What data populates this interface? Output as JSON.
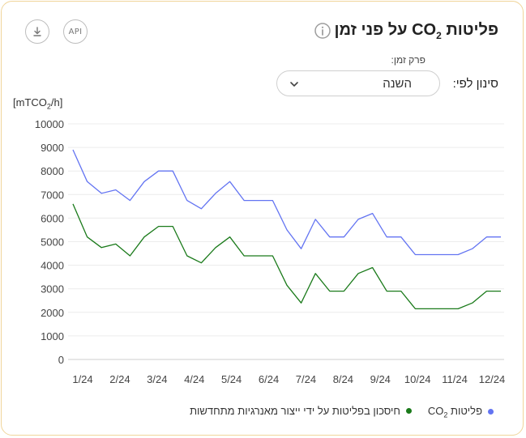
{
  "header": {
    "title_prefix": "פליטות CO",
    "title_sub": "2",
    "title_suffix": " על פני זמן",
    "info_icon": "info-circle-icon",
    "download_icon": "download-icon",
    "api_label": "API"
  },
  "filter": {
    "period_label": "פרק זמן:",
    "filter_label": "סינון לפי:",
    "selected": "השנה",
    "chevron_icon": "chevron-down-icon"
  },
  "chart_data": {
    "type": "line",
    "ylabel_prefix": "[mTCO",
    "ylabel_sub": "2",
    "ylabel_suffix": "/h]",
    "ylim": [
      0,
      10000
    ],
    "yticks": [
      "0",
      "1000",
      "2000",
      "3000",
      "4000",
      "5000",
      "6000",
      "7000",
      "8000",
      "9000",
      "10000"
    ],
    "xticks": [
      "1/24",
      "2/24",
      "3/24",
      "4/24",
      "5/24",
      "6/24",
      "7/24",
      "8/24",
      "9/24",
      "10/24",
      "11/24",
      "12/24"
    ],
    "grid": true,
    "x_steps": 30,
    "series": [
      {
        "name_prefix": "פליטות CO",
        "name_sub": "2",
        "color": "#6374f2",
        "values": [
          8900,
          7550,
          7050,
          7200,
          6750,
          7550,
          8000,
          8000,
          6750,
          6400,
          7050,
          7550,
          6750,
          6750,
          6750,
          5500,
          4700,
          5950,
          5200,
          5200,
          5950,
          6200,
          5200,
          5200,
          4450,
          4450,
          4450,
          4450,
          4700,
          5200,
          5200
        ]
      },
      {
        "name": "חיסכון בפליטות על ידי ייצור מאנרגיות מתחדשות",
        "color": "#1a7a1a",
        "values": [
          6600,
          5200,
          4750,
          4900,
          4400,
          5200,
          5650,
          5650,
          4400,
          4100,
          4750,
          5200,
          4400,
          4400,
          4400,
          3150,
          2400,
          3650,
          2900,
          2900,
          3650,
          3900,
          2900,
          2900,
          2150,
          2150,
          2150,
          2150,
          2400,
          2900,
          2900
        ]
      }
    ]
  }
}
